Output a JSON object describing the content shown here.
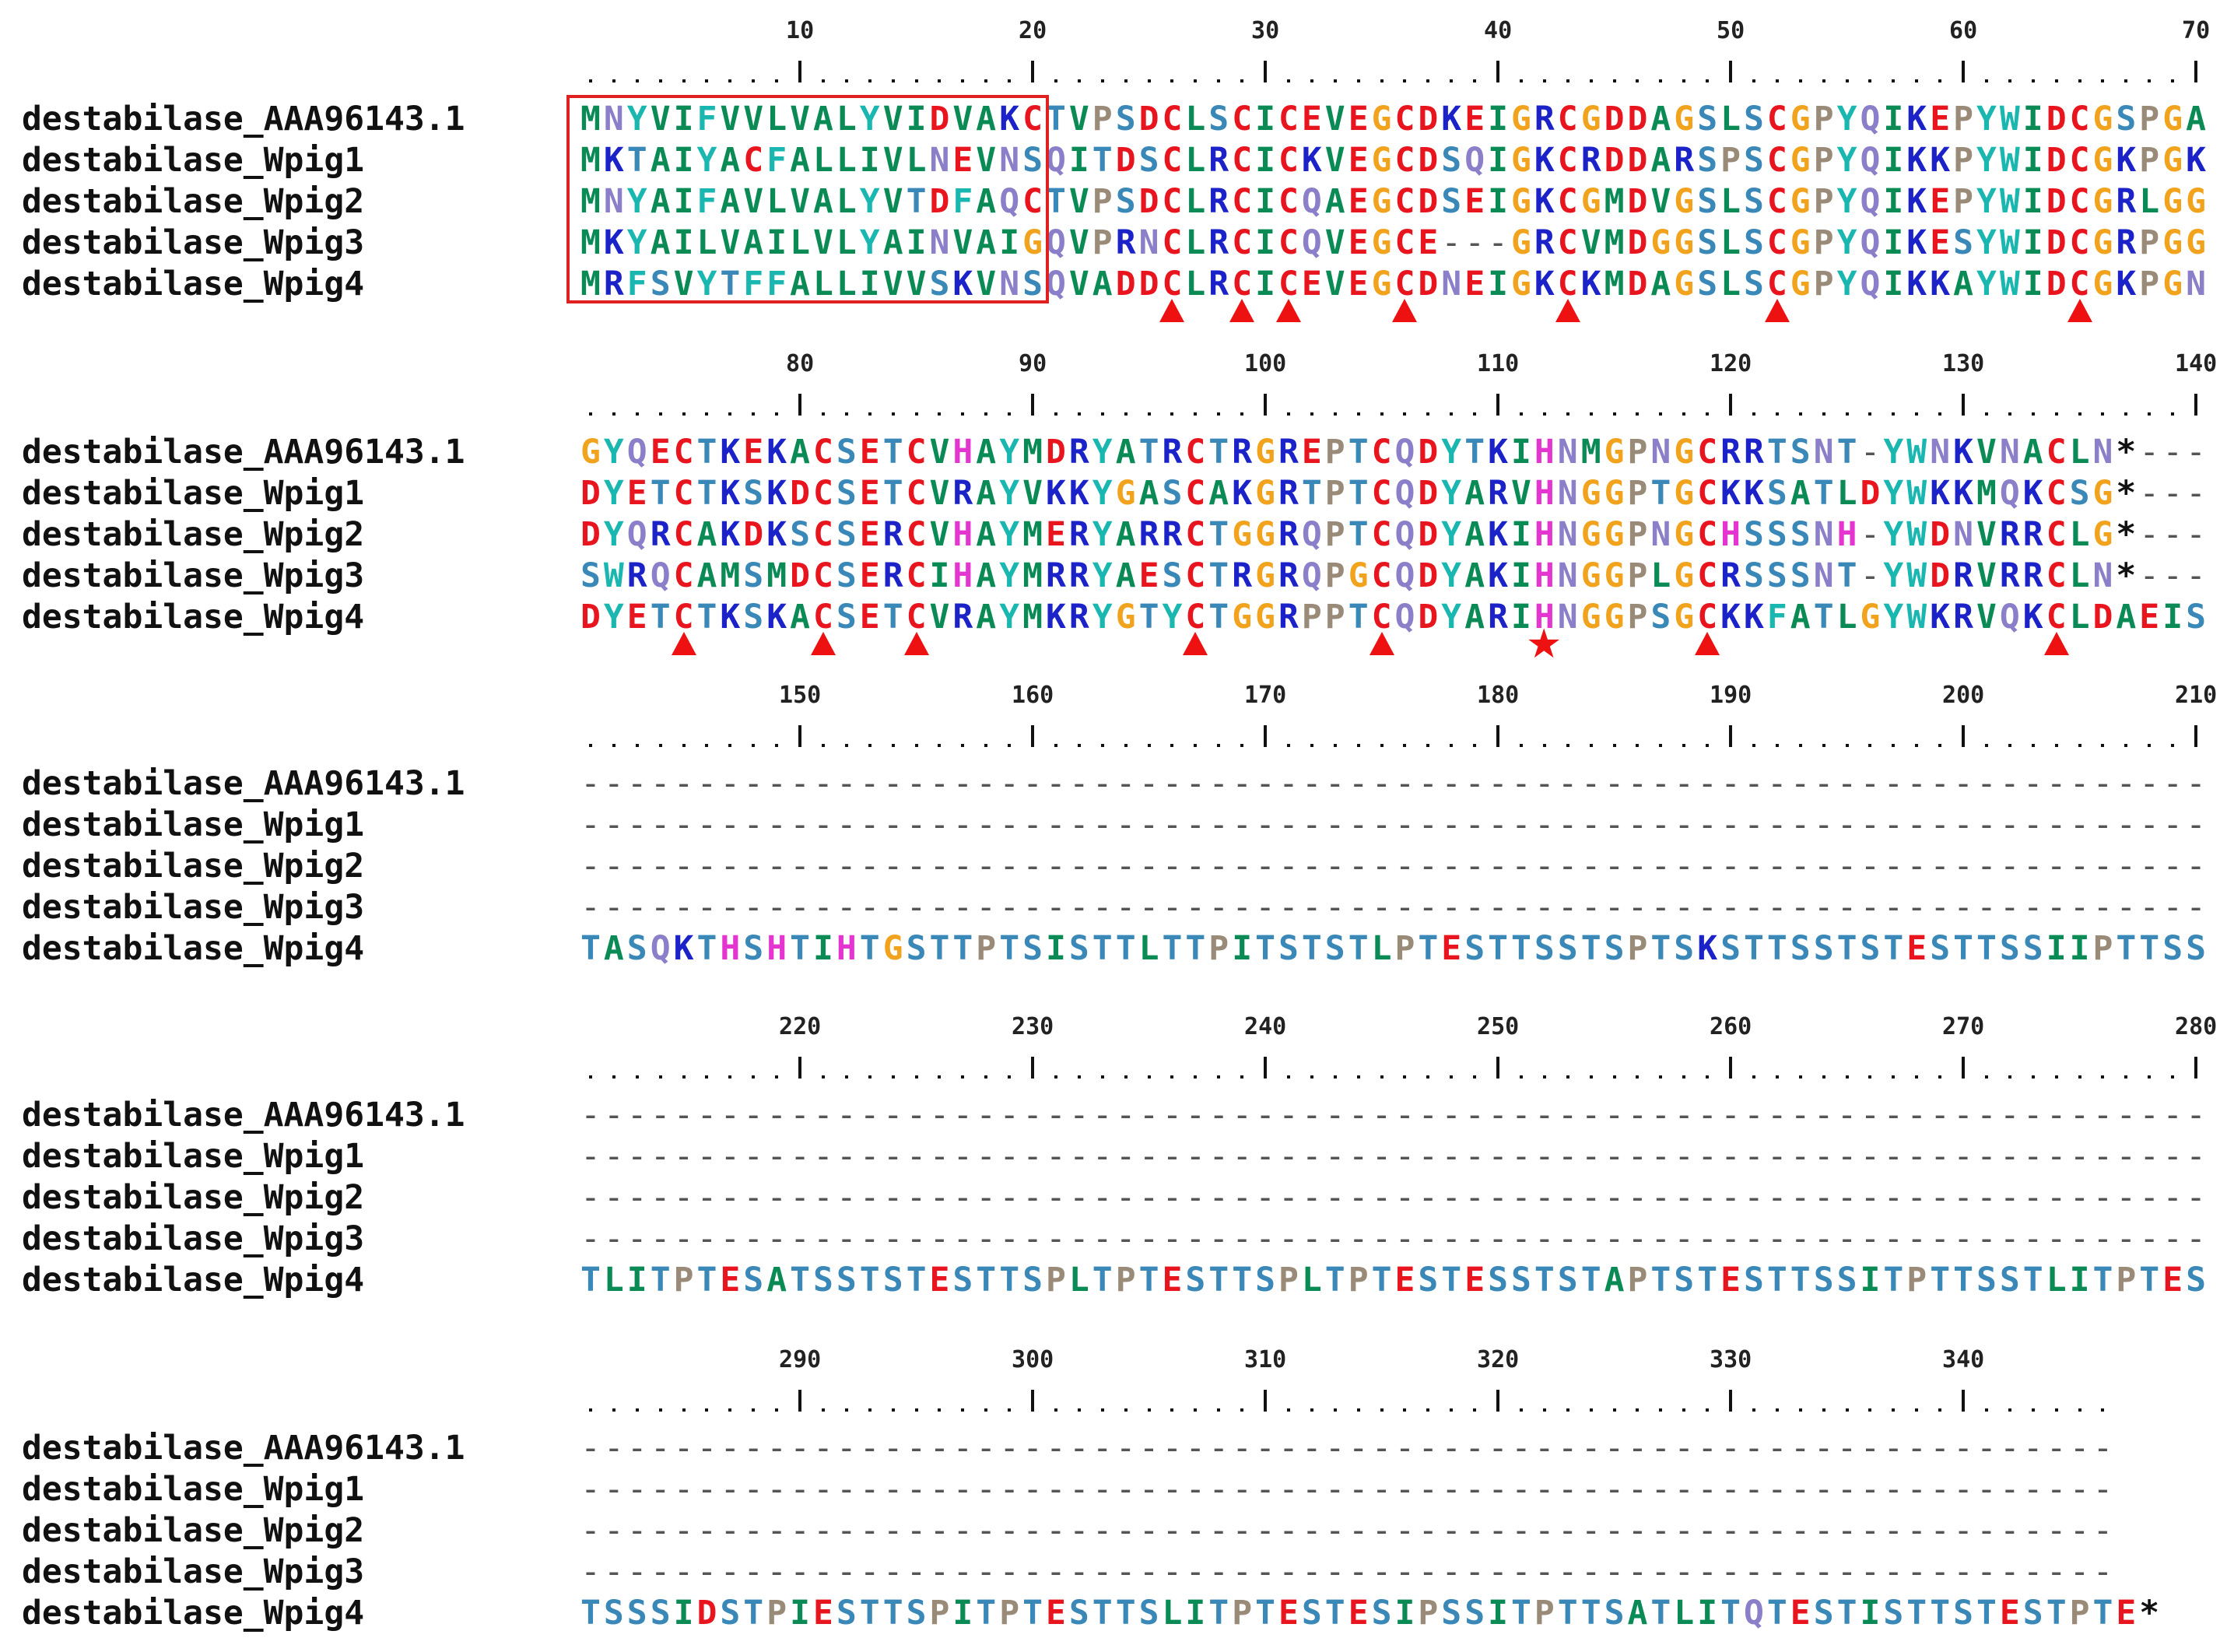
{
  "figure": {
    "names": [
      "destabilase_AAA96143.1",
      "destabilase_Wpig1",
      "destabilase_Wpig2",
      "destabilase_Wpig3",
      "destabilase_Wpig4"
    ],
    "blocks": [
      {
        "start": 1,
        "numbers": [
          "10",
          "20",
          "30",
          "40",
          "50",
          "60",
          "70"
        ],
        "sequences": [
          "MNYVIFVVLVALYVIDVAKCTVPSDCLSCICEVEGCDKEIGRCGDDAGSLSCGPYQIKEPYWIDCGSPGA",
          "MKTAIYACFALLIVLNEVNSQITDSCLRCICKVEGCDSQIGKCRDDARSPSCGPYQIKKPYWIDCGKPGK",
          "MNYAIFAVLVALYVTDFAQCTVPSDCLRCICQAEGCDSEIGKCGMDVGSLSCGPYQIKEPYWIDCGRLGG",
          "MKYAILVAILVLYAINVAIGQVPRNCLRCICQVEGCE---GRCVMDGGSLSCGPYQIKESYWIDCGRPGG",
          "MRFSVYTFFALLIVVSKVNSQVADDCLRCICEVEGCDNEIGKCKMDAGSLSCGPYQIKKAYWIDCGKPGN"
        ],
        "triangles": [
          26,
          29,
          31,
          36,
          43,
          52,
          65
        ],
        "stars": []
      },
      {
        "start": 71,
        "numbers": [
          "80",
          "90",
          "100",
          "110",
          "120",
          "130",
          "140"
        ],
        "sequences": [
          "GYQECTKEKACSETCVHAYMDRYATRCTRGREPTCQDYTKIHNMGPNGCRRTSNT-YWNKVNACLN*---",
          "DYETCTKSKDCSETCVRAYVKKYGASCAKGRTPTCQDYARVHNGGPTGCKKSATLDYWKKMQKCSG*---",
          "DYQRCAKDKSCSERCVHAYMERYARRCTGGRQPTCQDYAKIHNGGPNGCHSSSNH-YWDNVRRCLG*---",
          "SWRQCAMSMDCSERCIHAYMRRYAESCTRGRQPGCQDYAKIHNGGPLGCRSSSNT-YWDRVRRCLN*---",
          "DYETCTKSKACSETCVRAYMKRYGTYCTGGRPPTCQDYARIHNGGPSGCKKFATLGYWKRVQKCLDAEIS"
        ],
        "triangles": [
          75,
          81,
          85,
          97,
          105,
          119,
          134
        ],
        "stars": [
          112
        ]
      },
      {
        "start": 141,
        "numbers": [
          "150",
          "160",
          "170",
          "180",
          "190",
          "200",
          "210"
        ],
        "sequences": [
          "----------------------------------------------------------------------",
          "----------------------------------------------------------------------",
          "----------------------------------------------------------------------",
          "----------------------------------------------------------------------",
          "TASQKTHSHTIHTGSTTPTSISTTLTTPITSTSTLPTESTTSSTSPTSKSTTSSTSTESTTSSIIPTTSS"
        ],
        "triangles": [],
        "stars": []
      },
      {
        "start": 211,
        "numbers": [
          "220",
          "230",
          "240",
          "250",
          "260",
          "270",
          "280"
        ],
        "sequences": [
          "----------------------------------------------------------------------",
          "----------------------------------------------------------------------",
          "----------------------------------------------------------------------",
          "----------------------------------------------------------------------",
          "TLITPTESATSSTSTESTTSPLTPTESTTSPLTPTESTESSTSTAPTSTESTTSSITPTTSSTLITPTES"
        ],
        "triangles": [],
        "stars": []
      },
      {
        "start": 281,
        "numbers": [
          "290",
          "300",
          "310",
          "320",
          "330",
          "340"
        ],
        "sequences": [
          "------------------------------------------------------------------",
          "------------------------------------------------------------------",
          "------------------------------------------------------------------",
          "------------------------------------------------------------------",
          "TSSSIDSTPIESTTSPITPTESTTSLITPTESTESIPSSITPTTSATLITQTESTISTTSTESTPTE*"
        ],
        "triangles": [],
        "stars": []
      }
    ],
    "colors": {
      "acidic": "#e8141e",
      "basic": "#1a22c8",
      "hydrophobic": "#0a8a55",
      "aromatic": "#19b7b0",
      "polar_st": "#3a88b8",
      "amide": "#8a7fc8",
      "glycine": "#f2a31d",
      "proline": "#9a8a78",
      "histidine": "#e535d0",
      "cysteine": "#e8141e",
      "gap": "#555555",
      "stop": "#111111",
      "marker": "#ee1111",
      "box": "#e02020"
    }
  }
}
